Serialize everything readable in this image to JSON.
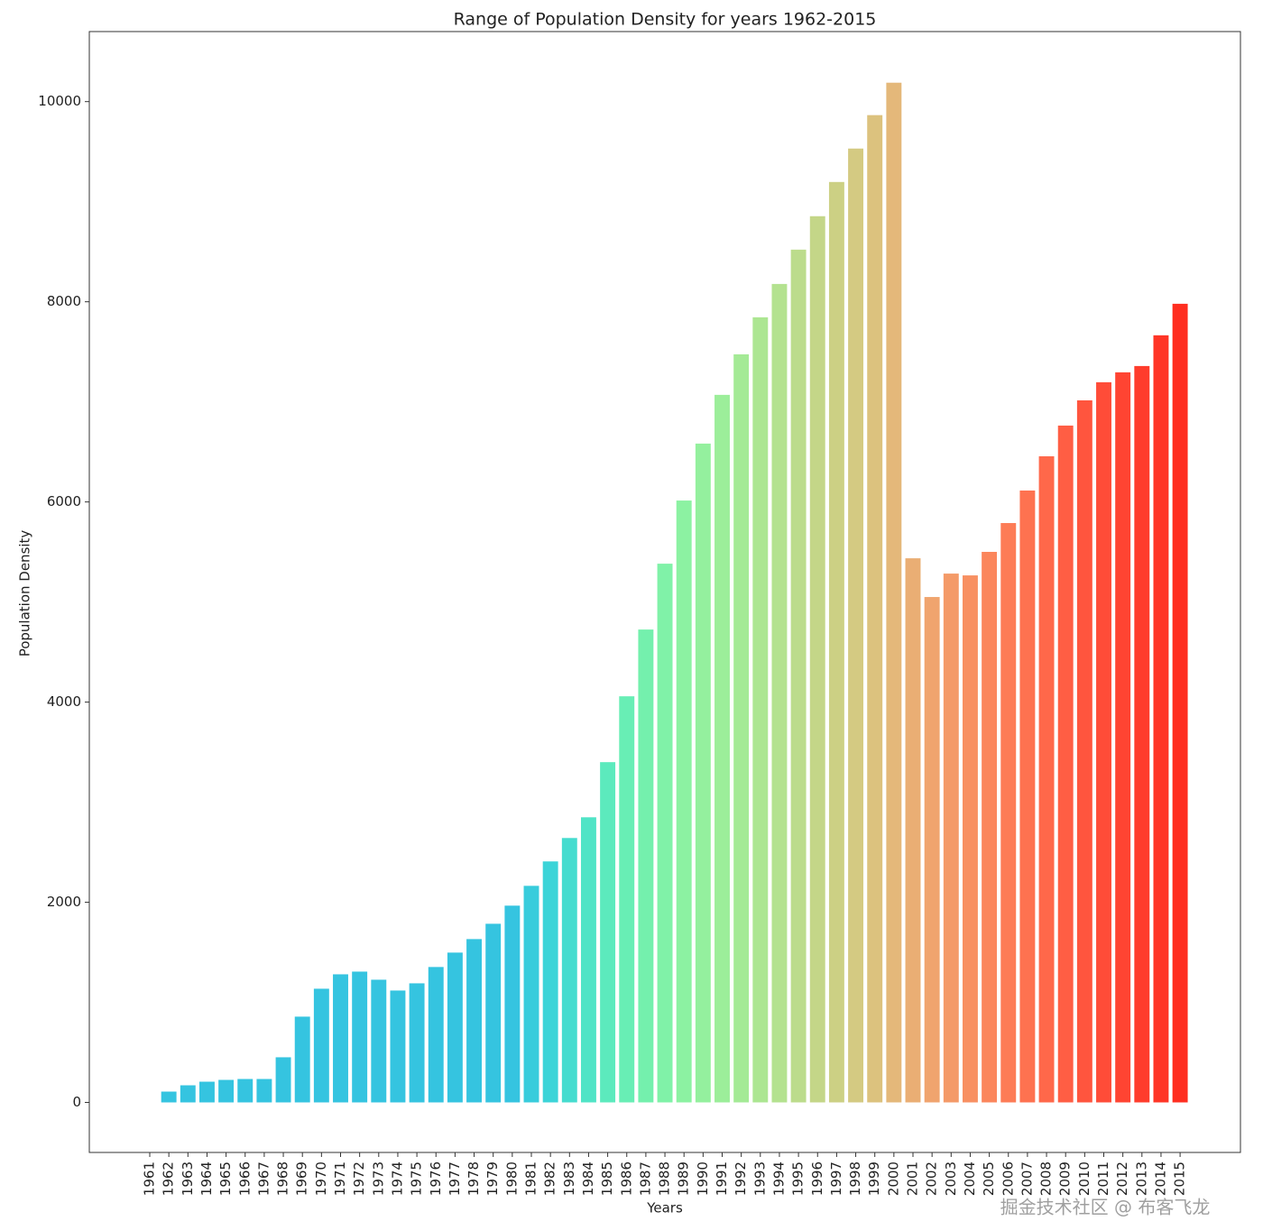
{
  "chart_data": {
    "type": "bar",
    "title": "Range of Population Density for years 1962-2015",
    "x_label": "Years",
    "y_label": "Population Density",
    "categories": [
      "1961",
      "1962",
      "1963",
      "1964",
      "1965",
      "1966",
      "1967",
      "1968",
      "1969",
      "1970",
      "1971",
      "1972",
      "1973",
      "1974",
      "1975",
      "1976",
      "1977",
      "1978",
      "1979",
      "1980",
      "1981",
      "1982",
      "1983",
      "1984",
      "1985",
      "1986",
      "1987",
      "1988",
      "1989",
      "1990",
      "1991",
      "1992",
      "1993",
      "1994",
      "1995",
      "1996",
      "1997",
      "1998",
      "1999",
      "2000",
      "2001",
      "2002",
      "2003",
      "2004",
      "2005",
      "2006",
      "2007",
      "2008",
      "2009",
      "2010",
      "2011",
      "2012",
      "2013",
      "2014",
      "2015"
    ],
    "values": [
      null,
      108,
      171,
      207,
      225,
      234,
      234,
      451,
      857,
      1136,
      1280,
      1307,
      1226,
      1118,
      1190,
      1353,
      1497,
      1632,
      1785,
      1966,
      2164,
      2408,
      2642,
      2849,
      3400,
      4058,
      4725,
      5383,
      6014,
      6583,
      7070,
      7475,
      7845,
      8178,
      8521,
      8855,
      9197,
      9531,
      9865,
      10189,
      5437,
      5050,
      5284,
      5266,
      5501,
      5789,
      6114,
      6456,
      6763,
      7015,
      7196,
      7295,
      7358,
      7665,
      7980
    ],
    "colors": [
      null,
      "#35c4e0",
      "#35c4e0",
      "#35c4e0",
      "#35c4e0",
      "#35c4e0",
      "#35c4e0",
      "#35c4e0",
      "#35c4e0",
      "#35c4e0",
      "#35c4e0",
      "#35c4e0",
      "#35c4e0",
      "#35c4e0",
      "#35c4e0",
      "#35c4e0",
      "#35c4e0",
      "#35c4e0",
      "#35c4e0",
      "#35c4e0",
      "#38ccdc",
      "#3cd4d8",
      "#45dccf",
      "#50e4c6",
      "#5ceabd",
      "#68eeb5",
      "#74f0ad",
      "#80f2a8",
      "#8cf2a2",
      "#94f09e",
      "#9cee9a",
      "#a4ea96",
      "#ace692",
      "#b4e290",
      "#bcdc8c",
      "#c4d688",
      "#ccd084",
      "#d4ca82",
      "#dcc27e",
      "#e4b87a",
      "#eaae74",
      "#f0a46e",
      "#f49a68",
      "#f89062",
      "#fb865c",
      "#fd7c56",
      "#fe7250",
      "#ff684a",
      "#ff5e44",
      "#ff553e",
      "#ff4c38",
      "#ff4432",
      "#ff3c2c",
      "#ff3526",
      "#ff2e20"
    ],
    "ylim": [
      -500,
      10700
    ],
    "yticks": [
      0,
      2000,
      4000,
      6000,
      8000,
      10000
    ],
    "grid": false,
    "watermark": "掘金技术社区 @ 布客飞龙"
  }
}
